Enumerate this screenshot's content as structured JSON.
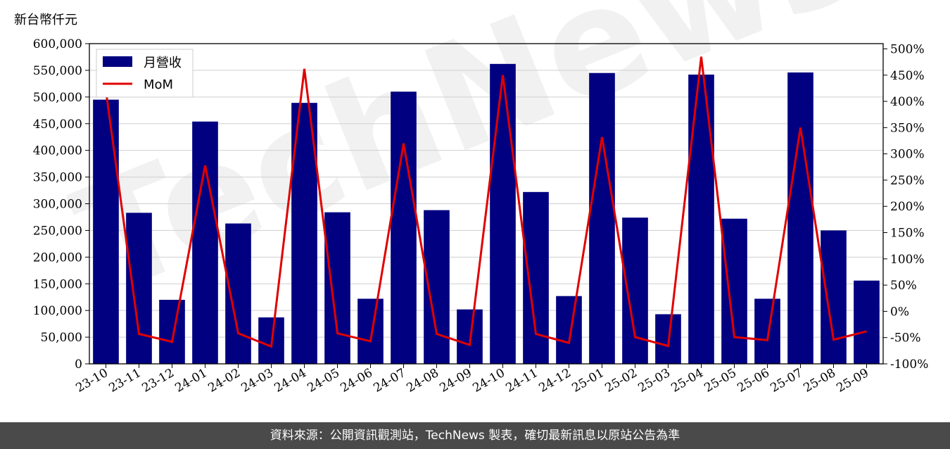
{
  "chart_data": {
    "type": "bar",
    "categories": [
      "23-10",
      "23-11",
      "23-12",
      "24-01",
      "24-02",
      "24-03",
      "24-04",
      "24-05",
      "24-06",
      "24-07",
      "24-08",
      "24-09",
      "24-10",
      "24-11",
      "24-12",
      "25-01",
      "25-02",
      "25-03",
      "25-04",
      "25-05",
      "25-06",
      "25-07",
      "25-08",
      "25-09"
    ],
    "series": [
      {
        "name": "月營收",
        "type": "bar",
        "axis": "left",
        "color": "#000080",
        "values": [
          495000,
          283000,
          120000,
          454000,
          263000,
          87000,
          489000,
          284000,
          122000,
          510000,
          288000,
          102000,
          562000,
          322000,
          127000,
          545000,
          274000,
          93000,
          542000,
          272000,
          122000,
          546000,
          250000,
          156000
        ]
      },
      {
        "name": "MoM",
        "type": "line",
        "axis": "right",
        "color": "#e00000",
        "values": [
          420,
          -43,
          -58,
          278,
          -42,
          -67,
          462,
          -42,
          -57,
          320,
          -43,
          -64,
          450,
          -43,
          -60,
          332,
          -49,
          -66,
          485,
          -49,
          -55,
          350,
          -54,
          -38
        ]
      }
    ],
    "unit_label": "新台幣仟元",
    "y_left": {
      "min": 0,
      "max": 600000,
      "ticks": [
        0,
        50000,
        100000,
        150000,
        200000,
        250000,
        300000,
        350000,
        400000,
        450000,
        500000,
        550000,
        600000
      ],
      "tick_labels": [
        "0",
        "50,000",
        "100,000",
        "150,000",
        "200,000",
        "250,000",
        "300,000",
        "350,000",
        "400,000",
        "450,000",
        "500,000",
        "550,000",
        "600,000"
      ]
    },
    "y_right": {
      "min": -100,
      "max": 510,
      "ticks": [
        -100,
        -50,
        0,
        50,
        100,
        150,
        200,
        250,
        300,
        350,
        400,
        450,
        500
      ],
      "tick_labels": [
        "-100%",
        "-50%",
        "0%",
        "50%",
        "100%",
        "150%",
        "200%",
        "250%",
        "300%",
        "350%",
        "400%",
        "450%",
        "500%"
      ]
    },
    "grid": "horizontal",
    "legend": {
      "position": "top-left",
      "items": [
        {
          "label": "月營收",
          "kind": "bar",
          "color": "#000080"
        },
        {
          "label": "MoM",
          "kind": "line",
          "color": "#e00000"
        }
      ]
    },
    "watermark": "TechNews"
  },
  "footer": {
    "text": "資料來源：公開資訊觀測站，TechNews 製表，確切最新訊息以原站公告為準"
  }
}
